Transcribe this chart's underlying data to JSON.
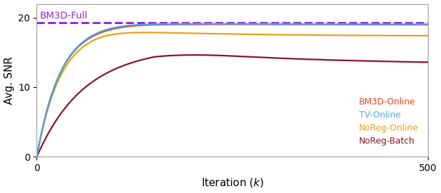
{
  "xlabel": "Iteration $(k)$",
  "ylabel": "Avg. SNR",
  "xlim": [
    0,
    500
  ],
  "ylim": [
    0,
    22
  ],
  "yticks": [
    0,
    10,
    20
  ],
  "xticks": [
    0,
    500
  ],
  "dashed_line_value": 19.25,
  "dashed_line_label": "BM3D-Full",
  "dashed_line_color": "#8B2BE2",
  "lines": {
    "BM3D-Online": {
      "color": "#E84020",
      "label": "BM3D-Online"
    },
    "TV-Online": {
      "color": "#4AA8E8",
      "label": "TV-Online"
    },
    "NoReg-Online": {
      "color": "#E8A010",
      "label": "NoReg-Online"
    },
    "NoReg-Batch": {
      "color": "#8B1020",
      "label": "NoReg-Batch"
    }
  },
  "background_color": "#ffffff",
  "legend_fontsize": 9,
  "axis_fontsize": 11,
  "tick_fontsize": 10
}
